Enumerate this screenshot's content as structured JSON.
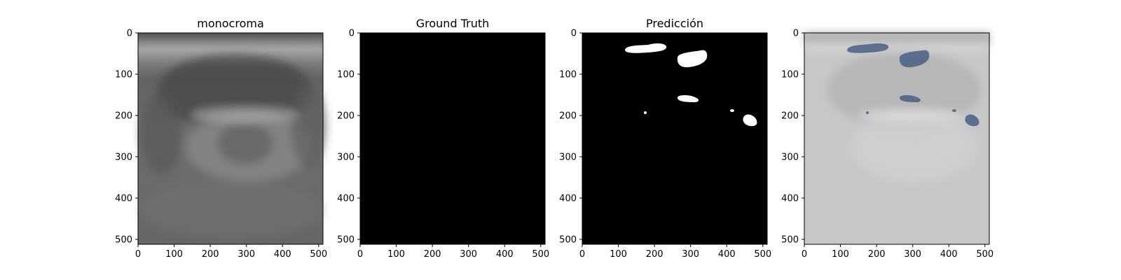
{
  "figure": {
    "panels": [
      {
        "title": "monocroma",
        "kind": "ultrasound-grayscale",
        "x_ticks": [
          "0",
          "100",
          "200",
          "300",
          "400",
          "500"
        ],
        "y_ticks": [
          "0",
          "100",
          "200",
          "300",
          "400",
          "500"
        ]
      },
      {
        "title": "Ground Truth",
        "kind": "mask-empty",
        "x_ticks": [
          "0",
          "100",
          "200",
          "300",
          "400",
          "500"
        ],
        "y_ticks": [
          "0",
          "100",
          "200",
          "300",
          "400",
          "500"
        ]
      },
      {
        "title": "Predicción",
        "kind": "mask-prediction",
        "x_ticks": [
          "0",
          "100",
          "200",
          "300",
          "400",
          "500"
        ],
        "y_ticks": [
          "0",
          "100",
          "200",
          "300",
          "400",
          "500"
        ]
      },
      {
        "title": "",
        "kind": "overlay",
        "x_ticks": [
          "0",
          "100",
          "200",
          "300",
          "400",
          "500"
        ],
        "y_ticks": [
          "0",
          "100",
          "200",
          "300",
          "400",
          "500"
        ]
      }
    ]
  },
  "colors": {
    "mask_background": "#000000",
    "mask_foreground": "#ffffff",
    "overlay_fill": "#4a5f85",
    "axes": "#000000",
    "text": "#000000"
  }
}
